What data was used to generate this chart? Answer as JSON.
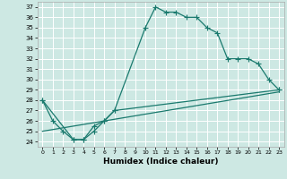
{
  "title": "",
  "xlabel": "Humidex (Indice chaleur)",
  "xlim": [
    -0.5,
    23.5
  ],
  "ylim": [
    23.5,
    37.5
  ],
  "yticks": [
    24,
    25,
    26,
    27,
    28,
    29,
    30,
    31,
    32,
    33,
    34,
    35,
    36,
    37
  ],
  "xticks": [
    0,
    1,
    2,
    3,
    4,
    5,
    6,
    7,
    8,
    9,
    10,
    11,
    12,
    13,
    14,
    15,
    16,
    17,
    18,
    19,
    20,
    21,
    22,
    23
  ],
  "bg_color": "#cde8e3",
  "grid_color": "#ffffff",
  "line_color": "#1a7a6e",
  "curve1_x": [
    0,
    1,
    2,
    3,
    4,
    5,
    6,
    7,
    10,
    11,
    12,
    13,
    14,
    15,
    16,
    17,
    18,
    19,
    20,
    21,
    22,
    23
  ],
  "curve1_y": [
    28.0,
    26.0,
    25.0,
    24.2,
    24.2,
    25.0,
    26.0,
    27.0,
    35.0,
    37.0,
    36.5,
    36.5,
    36.0,
    36.0,
    35.0,
    34.5,
    32.0,
    32.0,
    32.0,
    31.5,
    30.0,
    29.0
  ],
  "curve2_x": [
    0,
    3,
    4,
    5,
    6,
    7,
    23
  ],
  "curve2_y": [
    28.0,
    24.2,
    24.2,
    25.5,
    26.0,
    27.0,
    29.0
  ],
  "curve3_x": [
    0,
    23
  ],
  "curve3_y": [
    25.0,
    28.8
  ],
  "marker": "+",
  "markersize": 4,
  "linewidth": 0.9
}
